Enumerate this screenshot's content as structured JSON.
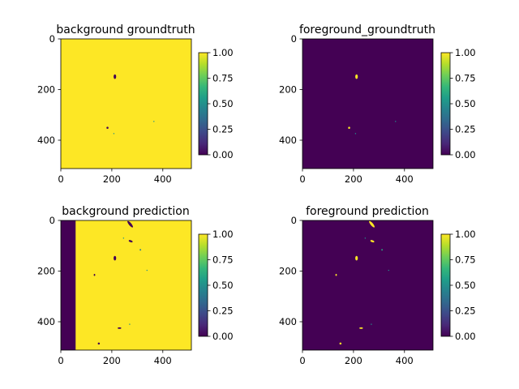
{
  "chart_data": [
    {
      "type": "heatmap",
      "title": "background groundtruth",
      "xlim": [
        0,
        512
      ],
      "ylim": [
        512,
        0
      ],
      "xticks": [
        0,
        200,
        400
      ],
      "yticks": [
        0,
        200,
        400
      ],
      "fill_value": 1,
      "blobs": [
        {
          "x": 212,
          "y": 149,
          "rx": 5,
          "ry": 9,
          "value": 0,
          "angle": 0
        },
        {
          "x": 183,
          "y": 351,
          "rx": 4,
          "ry": 4,
          "value": 0,
          "angle": 0
        },
        {
          "x": 208,
          "y": 374,
          "rx": 2,
          "ry": 2,
          "value": 0.5,
          "angle": 0
        },
        {
          "x": 365,
          "y": 326,
          "rx": 2,
          "ry": 2,
          "value": 0.5,
          "angle": 0
        }
      ],
      "colorbar": {
        "ticks": [
          "1.00",
          "0.75",
          "0.50",
          "0.25",
          "0.00"
        ]
      }
    },
    {
      "type": "heatmap",
      "title": "foreground_groundtruth",
      "xlim": [
        0,
        512
      ],
      "ylim": [
        512,
        0
      ],
      "xticks": [
        0,
        200,
        400
      ],
      "yticks": [
        0,
        200,
        400
      ],
      "fill_value": 0,
      "blobs": [
        {
          "x": 212,
          "y": 149,
          "rx": 5,
          "ry": 9,
          "value": 1,
          "angle": 0
        },
        {
          "x": 183,
          "y": 351,
          "rx": 4,
          "ry": 4,
          "value": 1,
          "angle": 0
        },
        {
          "x": 208,
          "y": 374,
          "rx": 2,
          "ry": 2,
          "value": 0.5,
          "angle": 0
        },
        {
          "x": 365,
          "y": 326,
          "rx": 2,
          "ry": 2,
          "value": 0.5,
          "angle": 0
        }
      ],
      "colorbar": {
        "ticks": [
          "1.00",
          "0.75",
          "0.50",
          "0.25",
          "0.00"
        ]
      }
    },
    {
      "type": "heatmap",
      "title": "background prediction",
      "xlim": [
        0,
        512
      ],
      "ylim": [
        512,
        0
      ],
      "xticks": [
        0,
        200,
        400
      ],
      "yticks": [
        0,
        200,
        400
      ],
      "fill_value": 1,
      "region": {
        "x0": 0,
        "x1": 58,
        "value": 0
      },
      "blobs": [
        {
          "x": 272,
          "y": 15,
          "rx": 5,
          "ry": 16,
          "value": 0,
          "angle": -40
        },
        {
          "x": 246,
          "y": 70,
          "rx": 2,
          "ry": 2,
          "value": 0.5,
          "angle": 0
        },
        {
          "x": 274,
          "y": 82,
          "rx": 8,
          "ry": 4,
          "value": 0,
          "angle": 20
        },
        {
          "x": 312,
          "y": 116,
          "rx": 3,
          "ry": 3,
          "value": 0.4,
          "angle": 0
        },
        {
          "x": 212,
          "y": 149,
          "rx": 5,
          "ry": 9,
          "value": 0,
          "angle": 0
        },
        {
          "x": 338,
          "y": 197,
          "rx": 2,
          "ry": 2,
          "value": 0.5,
          "angle": 0
        },
        {
          "x": 132,
          "y": 215,
          "rx": 3,
          "ry": 4,
          "value": 0,
          "angle": 0
        },
        {
          "x": 230,
          "y": 425,
          "rx": 7,
          "ry": 3,
          "value": 0,
          "angle": 0
        },
        {
          "x": 270,
          "y": 410,
          "rx": 2,
          "ry": 2,
          "value": 0.5,
          "angle": 0
        },
        {
          "x": 149,
          "y": 486,
          "rx": 4,
          "ry": 4,
          "value": 0,
          "angle": 0
        }
      ],
      "colorbar": {
        "ticks": [
          "1.00",
          "0.75",
          "0.50",
          "0.25",
          "0.00"
        ]
      }
    },
    {
      "type": "heatmap",
      "title": "foreground prediction",
      "xlim": [
        0,
        512
      ],
      "ylim": [
        512,
        0
      ],
      "xticks": [
        0,
        200,
        400
      ],
      "yticks": [
        0,
        200,
        400
      ],
      "fill_value": 0,
      "blobs": [
        {
          "x": 272,
          "y": 15,
          "rx": 5,
          "ry": 16,
          "value": 1,
          "angle": -40
        },
        {
          "x": 246,
          "y": 70,
          "rx": 2,
          "ry": 2,
          "value": 0.5,
          "angle": 0
        },
        {
          "x": 274,
          "y": 82,
          "rx": 8,
          "ry": 4,
          "value": 1,
          "angle": 20
        },
        {
          "x": 312,
          "y": 116,
          "rx": 3,
          "ry": 3,
          "value": 0.6,
          "angle": 0
        },
        {
          "x": 212,
          "y": 149,
          "rx": 5,
          "ry": 9,
          "value": 1,
          "angle": 0
        },
        {
          "x": 338,
          "y": 197,
          "rx": 2,
          "ry": 2,
          "value": 0.5,
          "angle": 0
        },
        {
          "x": 132,
          "y": 215,
          "rx": 3,
          "ry": 4,
          "value": 1,
          "angle": 0
        },
        {
          "x": 230,
          "y": 425,
          "rx": 7,
          "ry": 3,
          "value": 1,
          "angle": 0
        },
        {
          "x": 270,
          "y": 410,
          "rx": 2,
          "ry": 2,
          "value": 0.5,
          "angle": 0
        },
        {
          "x": 149,
          "y": 486,
          "rx": 4,
          "ry": 4,
          "value": 1,
          "angle": 0
        }
      ],
      "colorbar": {
        "ticks": [
          "1.00",
          "0.75",
          "0.50",
          "0.25",
          "0.00"
        ]
      }
    }
  ],
  "colormap": {
    "name": "viridis",
    "stops": [
      "#440154",
      "#482878",
      "#3e4989",
      "#31688e",
      "#26828e",
      "#1f9e89",
      "#35b779",
      "#6ece58",
      "#b5de2b",
      "#fde725"
    ]
  }
}
